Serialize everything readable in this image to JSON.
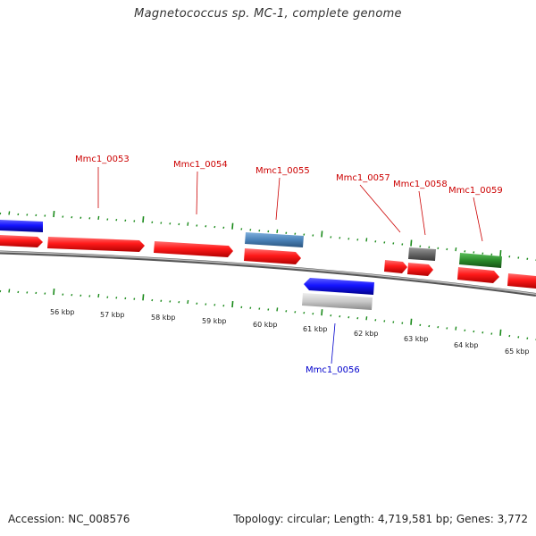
{
  "title": "Magnetococcus sp. MC-1, complete genome",
  "footer": {
    "accession": "Accession: NC_008576",
    "summary": "Topology: circular; Length: 4,719,581 bp; Genes: 3,772"
  },
  "ticks": [
    "56 kbp",
    "57 kbp",
    "58 kbp",
    "59 kbp",
    "60 kbp",
    "61 kbp",
    "62 kbp",
    "63 kbp",
    "64 kbp",
    "65 kbp"
  ],
  "gene_labels": {
    "g53": "Mmc1_0053",
    "g54": "Mmc1_0054",
    "g55": "Mmc1_0055",
    "g56": "Mmc1_0056",
    "g57": "Mmc1_0057",
    "g58": "Mmc1_0058",
    "g59": "Mmc1_0059"
  },
  "colors": {
    "forward_cds": "#ff1a1a",
    "reverse_cds": "#1414ff",
    "steelblue": "#4a82b8",
    "grey": "#666666",
    "lightgrey": "#c8c8c8",
    "green": "#2a8a2a",
    "tick_green": "#1a8a1a",
    "label_red": "#cc0000",
    "label_blue": "#0000cc",
    "backbone": "#888888"
  }
}
